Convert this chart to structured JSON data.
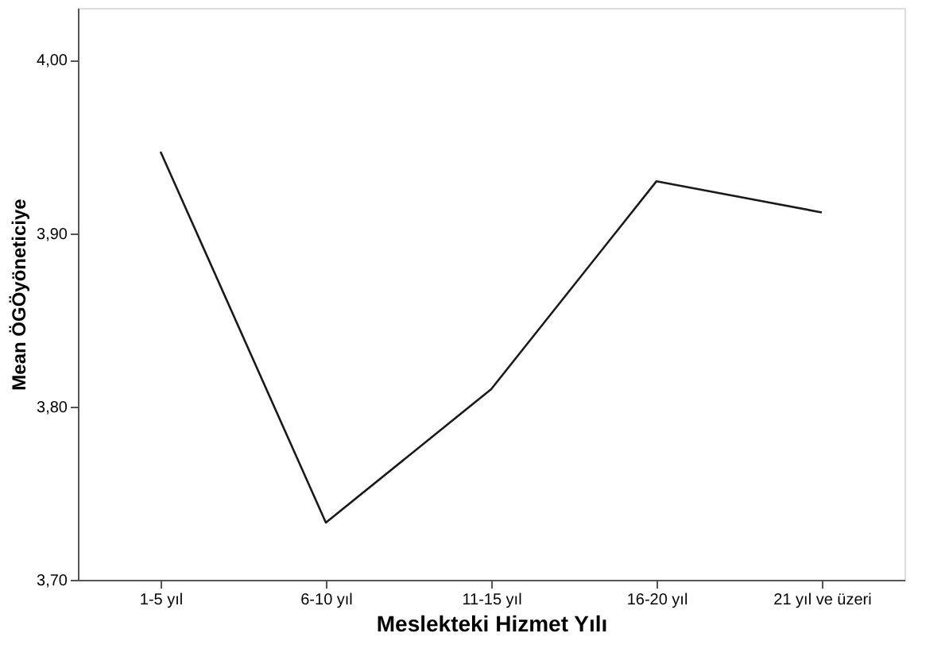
{
  "chart_data": {
    "type": "line",
    "xlabel": "Meslekteki Hizmet Yılı",
    "ylabel": "Mean ÖGÖyöneticiye",
    "categories": [
      "1-5 yıl",
      "6-10 yıl",
      "11-15 yıl",
      "16-20 yıl",
      "21 yıl ve üzeri"
    ],
    "series": [
      {
        "color": "#1a1a1a",
        "values": [
          3.947,
          3.733,
          3.81,
          3.93,
          3.912
        ]
      }
    ],
    "ylim": [
      3.7,
      4.03
    ],
    "yticks": [
      {
        "value": 3.7,
        "label": "3,70"
      },
      {
        "value": 3.8,
        "label": "3,80"
      },
      {
        "value": 3.9,
        "label": "3,90"
      },
      {
        "value": 4.0,
        "label": "4,00"
      }
    ],
    "grid": false,
    "marker": "none",
    "line_style": "solid"
  }
}
